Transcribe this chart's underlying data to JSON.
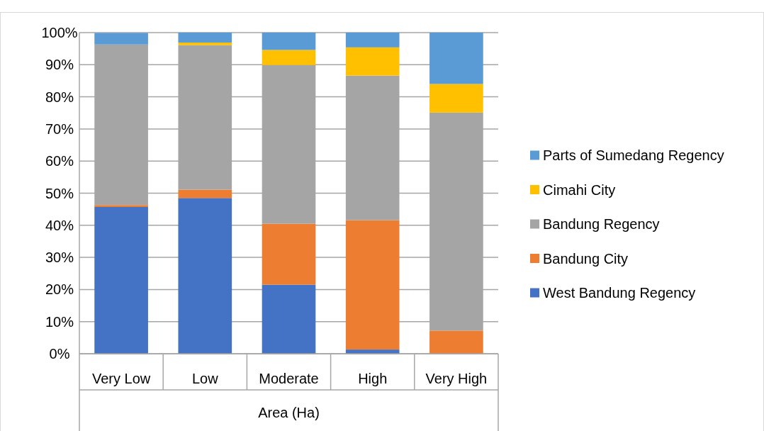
{
  "chart_data": {
    "type": "bar",
    "stacked": true,
    "xlabel": "Area (Ha)",
    "categories": [
      "Very Low",
      "Low",
      "Moderate",
      "High",
      "Very High"
    ],
    "series": [
      {
        "name": "West Bandung Regency",
        "color": "#4472c4",
        "values": [
          45.7,
          48.5,
          21.5,
          1.3,
          0
        ]
      },
      {
        "name": "Bandung City",
        "color": "#ed7d31",
        "values": [
          0.6,
          2.6,
          19.0,
          40.3,
          7.2
        ]
      },
      {
        "name": "Bandung Regency",
        "color": "#a5a5a5",
        "values": [
          50.0,
          45.0,
          49.4,
          45.0,
          67.9
        ]
      },
      {
        "name": "Cimahi City",
        "color": "#ffc000",
        "values": [
          null,
          0.8,
          4.7,
          8.8,
          8.9
        ]
      },
      {
        "name": "Parts of Sumedang Regency",
        "color": "#5b9bd5",
        "values": [
          3.6,
          3.1,
          5.4,
          4.6,
          16.0
        ]
      }
    ],
    "ylim": [
      0,
      100
    ],
    "yticks": [
      {
        "value": 0,
        "label": "0%"
      },
      {
        "value": 10,
        "label": "10%"
      },
      {
        "value": 20,
        "label": "20%"
      },
      {
        "value": 30,
        "label": "30%"
      },
      {
        "value": 40,
        "label": "40%"
      },
      {
        "value": 50,
        "label": "50%"
      },
      {
        "value": 60,
        "label": "60%"
      },
      {
        "value": 70,
        "label": "70%"
      },
      {
        "value": 80,
        "label": "80%"
      },
      {
        "value": 90,
        "label": "90%"
      },
      {
        "value": 100,
        "label": "100%"
      }
    ],
    "grid": "y",
    "legend": "right"
  }
}
